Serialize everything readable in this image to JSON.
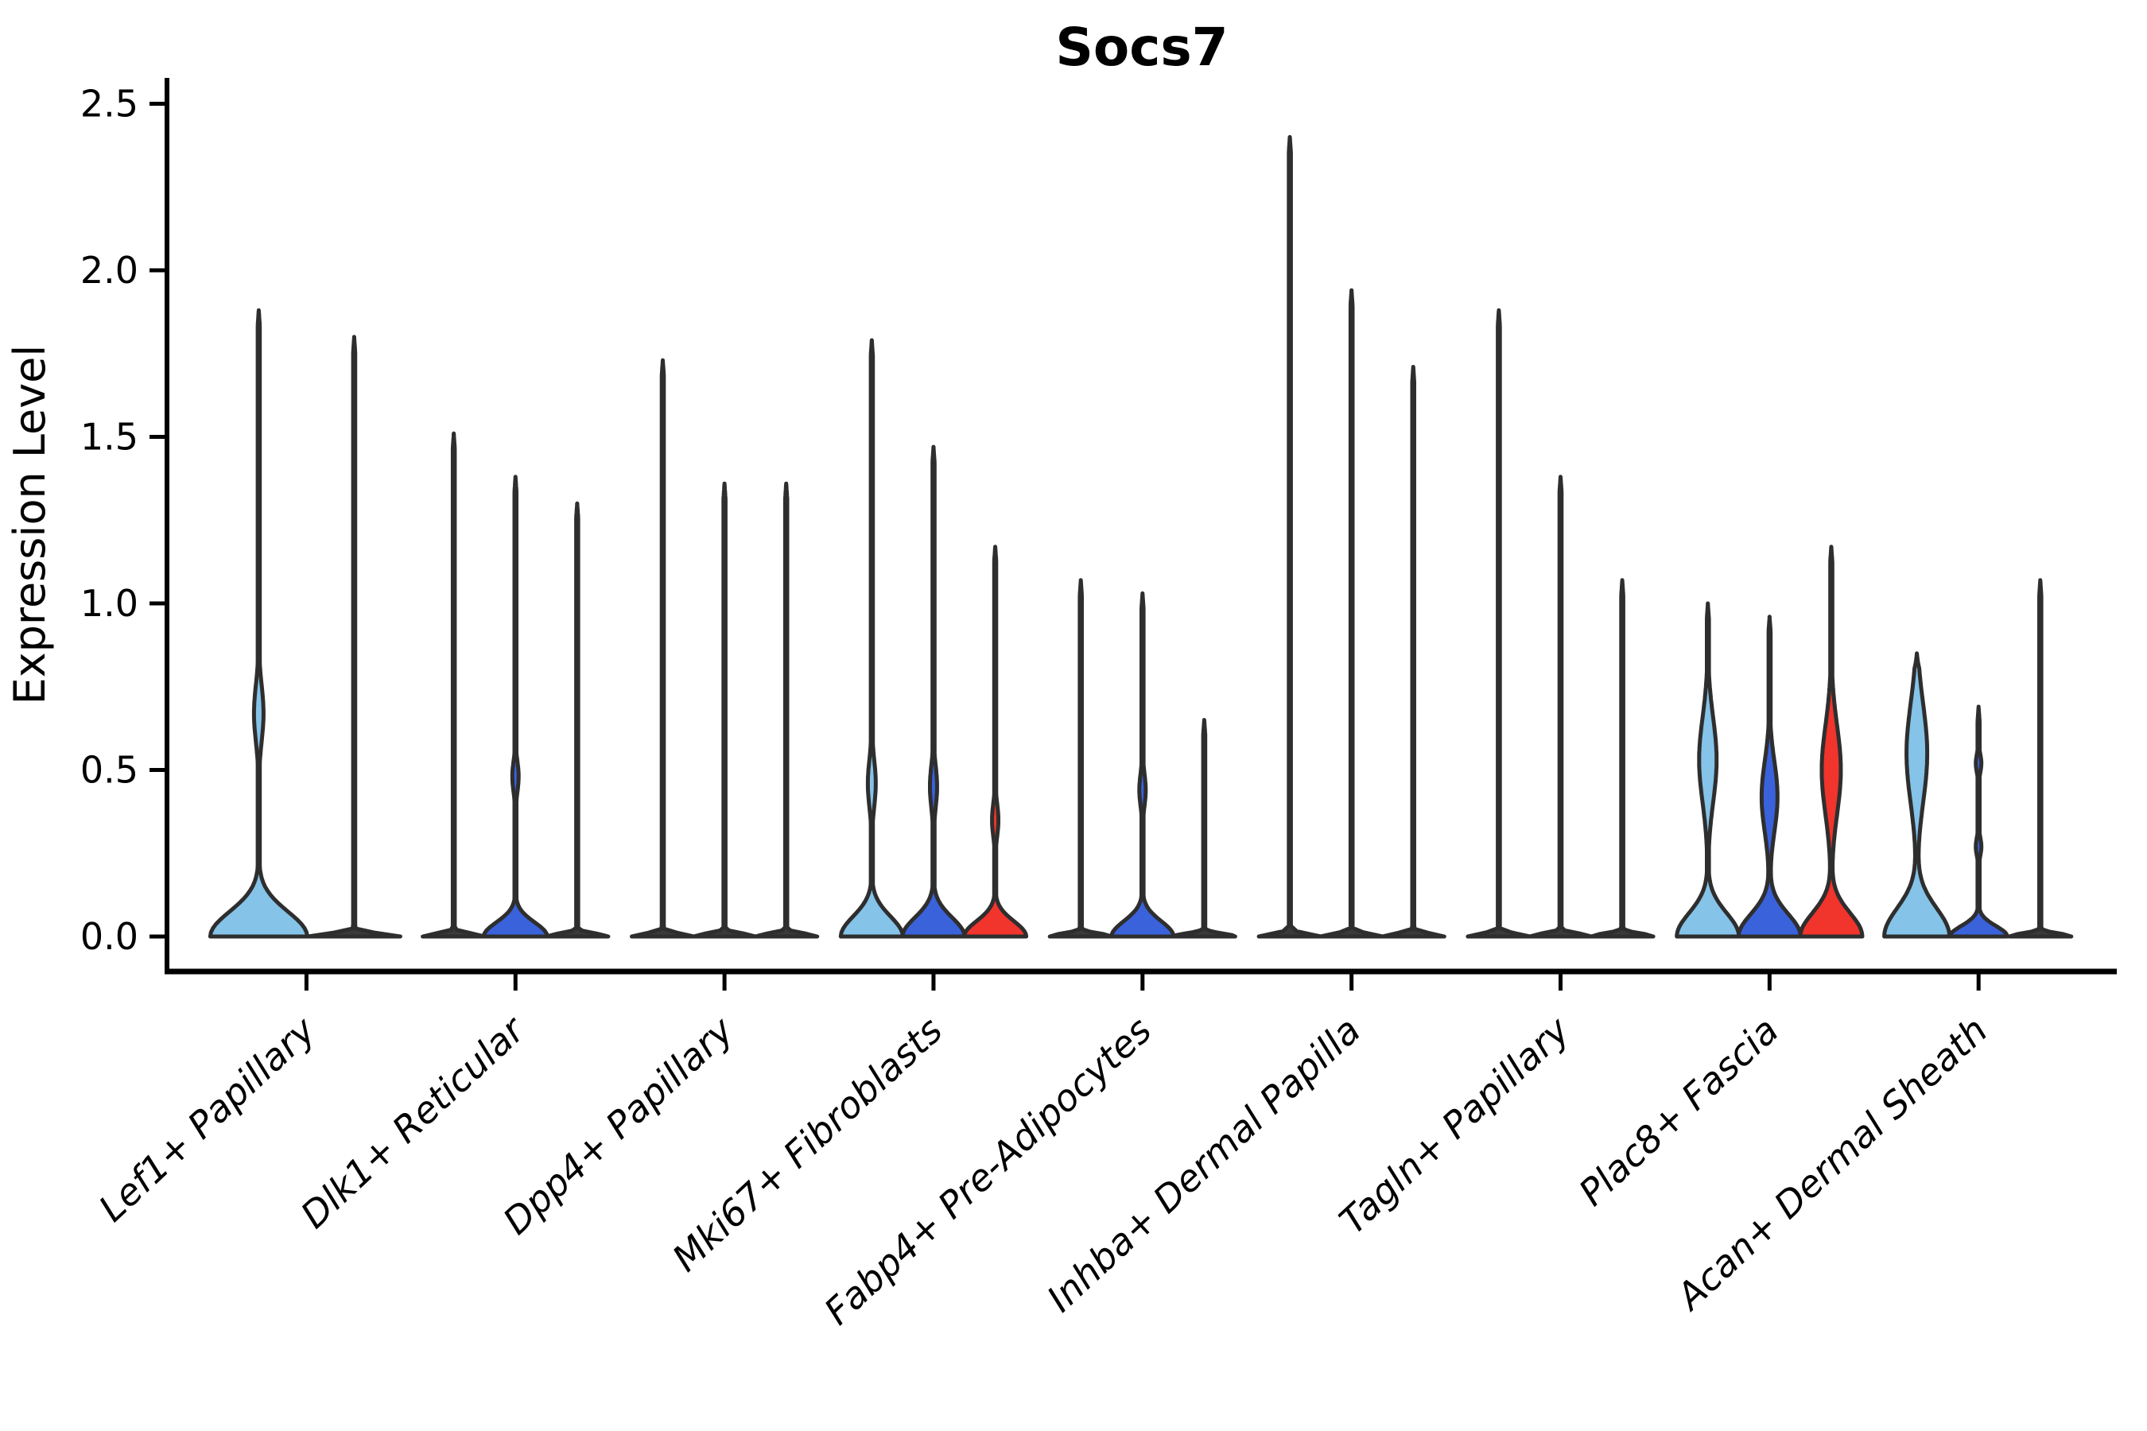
{
  "figure": {
    "title": "Socs7",
    "ylabel": "Expression Level"
  },
  "chart_data": {
    "type": "violin",
    "title": "Socs7",
    "xlabel": "",
    "ylabel": "Expression Level",
    "ylim": [
      0,
      2.5
    ],
    "yticks": [
      "0.0",
      "0.5",
      "1.0",
      "1.5",
      "2.0",
      "2.5"
    ],
    "ytick_values": [
      0,
      0.5,
      1.0,
      1.5,
      2.0,
      2.5
    ],
    "grid": false,
    "legend": "none",
    "palette": {
      "light_blue": "#85C3E9",
      "royal_blue": "#3A62DB",
      "red": "#F1342C",
      "edge": "#2E2E2E",
      "collapsed": "#3A3A3A"
    },
    "categories": [
      "Lef1+ Papillary",
      "Dlk1+ Reticular",
      "Dpp4+ Papillary",
      "Mki67+ Fibroblasts",
      "Fabp4+ Pre-Adipocytes",
      "Inhba+ Dermal Papilla",
      "Tagln+ Papillary",
      "Plac8+ Fascia",
      "Acan+ Dermal Sheath"
    ],
    "groups": [
      {
        "category": "Lef1+ Papillary",
        "violins": [
          {
            "fill": "light_blue",
            "max": 1.88,
            "offset": -60,
            "base": {
              "hw": 61,
              "sv": 0.105
            },
            "bulges": [
              {
                "c": 0.67,
                "a": 6,
                "s": 0.12
              }
            ]
          },
          {
            "fill": null,
            "max": 1.8,
            "offset": 60,
            "base": {
              "hw": 58,
              "sv": 0.013
            },
            "bulges": []
          }
        ]
      },
      {
        "category": "Dlk1+ Reticular",
        "violins": [
          {
            "fill": null,
            "max": 1.51,
            "offset": -77.6,
            "base": {
              "hw": 39,
              "sv": 0.013
            },
            "bulges": []
          },
          {
            "fill": "royal_blue",
            "max": 1.38,
            "offset": 0,
            "base": {
              "hw": 40,
              "sv": 0.06
            },
            "bulges": [
              {
                "c": 0.48,
                "a": 4,
                "s": 0.065
              }
            ]
          },
          {
            "fill": null,
            "max": 1.3,
            "offset": 77.6,
            "base": {
              "hw": 39,
              "sv": 0.013
            },
            "bulges": []
          }
        ]
      },
      {
        "category": "Dpp4+ Papillary",
        "violins": [
          {
            "fill": null,
            "max": 1.73,
            "offset": -77.6,
            "base": {
              "hw": 39,
              "sv": 0.013
            },
            "bulges": []
          },
          {
            "fill": null,
            "max": 1.36,
            "offset": 0,
            "base": {
              "hw": 39,
              "sv": 0.013
            },
            "bulges": []
          },
          {
            "fill": null,
            "max": 1.36,
            "offset": 77.6,
            "base": {
              "hw": 39,
              "sv": 0.013
            },
            "bulges": []
          }
        ]
      },
      {
        "category": "Mki67+ Fibroblasts",
        "violins": [
          {
            "fill": "light_blue",
            "max": 1.79,
            "offset": -77.6,
            "base": {
              "hw": 39,
              "sv": 0.085
            },
            "bulges": [
              {
                "c": 0.46,
                "a": 5,
                "s": 0.1
              }
            ]
          },
          {
            "fill": "royal_blue",
            "max": 1.47,
            "offset": 0,
            "base": {
              "hw": 39,
              "sv": 0.08
            },
            "bulges": [
              {
                "c": 0.45,
                "a": 4.5,
                "s": 0.09
              }
            ]
          },
          {
            "fill": "red",
            "max": 1.17,
            "offset": 77.6,
            "base": {
              "hw": 39,
              "sv": 0.065
            },
            "bulges": [
              {
                "c": 0.35,
                "a": 4,
                "s": 0.07
              }
            ]
          }
        ]
      },
      {
        "category": "Fabp4+ Pre-Adipocytes",
        "violins": [
          {
            "fill": null,
            "max": 1.07,
            "offset": -77.6,
            "base": {
              "hw": 39,
              "sv": 0.013
            },
            "bulges": []
          },
          {
            "fill": "royal_blue",
            "max": 1.03,
            "offset": 0,
            "base": {
              "hw": 39,
              "sv": 0.065
            },
            "bulges": [
              {
                "c": 0.44,
                "a": 4,
                "s": 0.07
              }
            ]
          },
          {
            "fill": null,
            "max": 0.65,
            "offset": 77.6,
            "base": {
              "hw": 39,
              "sv": 0.013
            },
            "bulges": []
          }
        ]
      },
      {
        "category": "Inhba+ Dermal Papilla",
        "violins": [
          {
            "fill": null,
            "max": 2.4,
            "offset": -77.6,
            "base": {
              "hw": 39,
              "sv": 0.013
            },
            "bulges": []
          },
          {
            "fill": null,
            "max": 1.94,
            "offset": 0,
            "base": {
              "hw": 39,
              "sv": 0.013
            },
            "bulges": []
          },
          {
            "fill": null,
            "max": 1.71,
            "offset": 77.6,
            "base": {
              "hw": 39,
              "sv": 0.013
            },
            "bulges": []
          }
        ]
      },
      {
        "category": "Tagln+ Papillary",
        "violins": [
          {
            "fill": null,
            "max": 1.88,
            "offset": -77.6,
            "base": {
              "hw": 39,
              "sv": 0.013
            },
            "bulges": []
          },
          {
            "fill": null,
            "max": 1.38,
            "offset": 0,
            "base": {
              "hw": 39,
              "sv": 0.013
            },
            "bulges": []
          },
          {
            "fill": null,
            "max": 1.07,
            "offset": 77.6,
            "base": {
              "hw": 39,
              "sv": 0.013
            },
            "bulges": []
          }
        ]
      },
      {
        "category": "Plac8+ Fascia",
        "violins": [
          {
            "fill": "light_blue",
            "max": 1.0,
            "offset": -77.6,
            "base": {
              "hw": 39,
              "sv": 0.1
            },
            "bulges": [
              {
                "c": 0.53,
                "a": 11,
                "s": 0.18
              }
            ]
          },
          {
            "fill": "royal_blue",
            "max": 0.96,
            "offset": 0,
            "base": {
              "hw": 39,
              "sv": 0.095
            },
            "bulges": [
              {
                "c": 0.42,
                "a": 10,
                "s": 0.15
              }
            ]
          },
          {
            "fill": "red",
            "max": 1.17,
            "offset": 77.6,
            "base": {
              "hw": 39,
              "sv": 0.1
            },
            "bulges": [
              {
                "c": 0.5,
                "a": 12,
                "s": 0.19
              }
            ]
          }
        ]
      },
      {
        "category": "Acan+ Dermal Sheath",
        "violins": [
          {
            "fill": "light_blue",
            "max": 0.85,
            "offset": -77.6,
            "base": {
              "hw": 41,
              "sv": 0.12
            },
            "bulges": [
              {
                "c": 0.55,
                "a": 13,
                "s": 0.21
              }
            ]
          },
          {
            "fill": "royal_blue",
            "max": 0.69,
            "offset": 0,
            "base": {
              "hw": 36,
              "sv": 0.045
            },
            "bulges": [
              {
                "c": 0.52,
                "a": 3.5,
                "s": 0.04
              },
              {
                "c": 0.27,
                "a": 3.5,
                "s": 0.04
              }
            ]
          },
          {
            "fill": null,
            "max": 1.07,
            "offset": 77.6,
            "base": {
              "hw": 39,
              "sv": 0.013
            },
            "bulges": []
          }
        ]
      }
    ]
  }
}
